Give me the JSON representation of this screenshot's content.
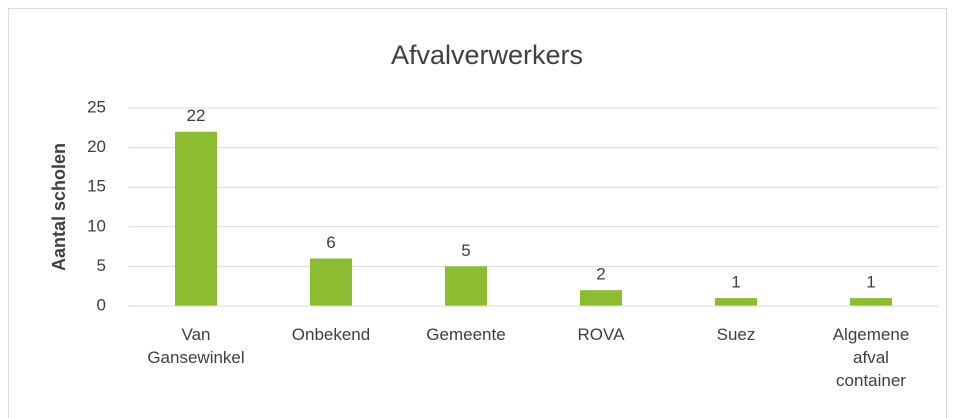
{
  "chart_data": {
    "type": "bar",
    "title": "Afvalverwerkers",
    "y_label": "Aantal scholen",
    "categories": [
      "Van Gansewinkel",
      "Onbekend",
      "Gemeente",
      "ROVA",
      "Suez",
      "Algemene afval container"
    ],
    "values": [
      22,
      6,
      5,
      2,
      1,
      1
    ],
    "color": "#8cbd31",
    "ylim": [
      0,
      25
    ],
    "yticks": [
      0,
      5,
      10,
      15,
      20,
      25
    ],
    "grid": true
  }
}
